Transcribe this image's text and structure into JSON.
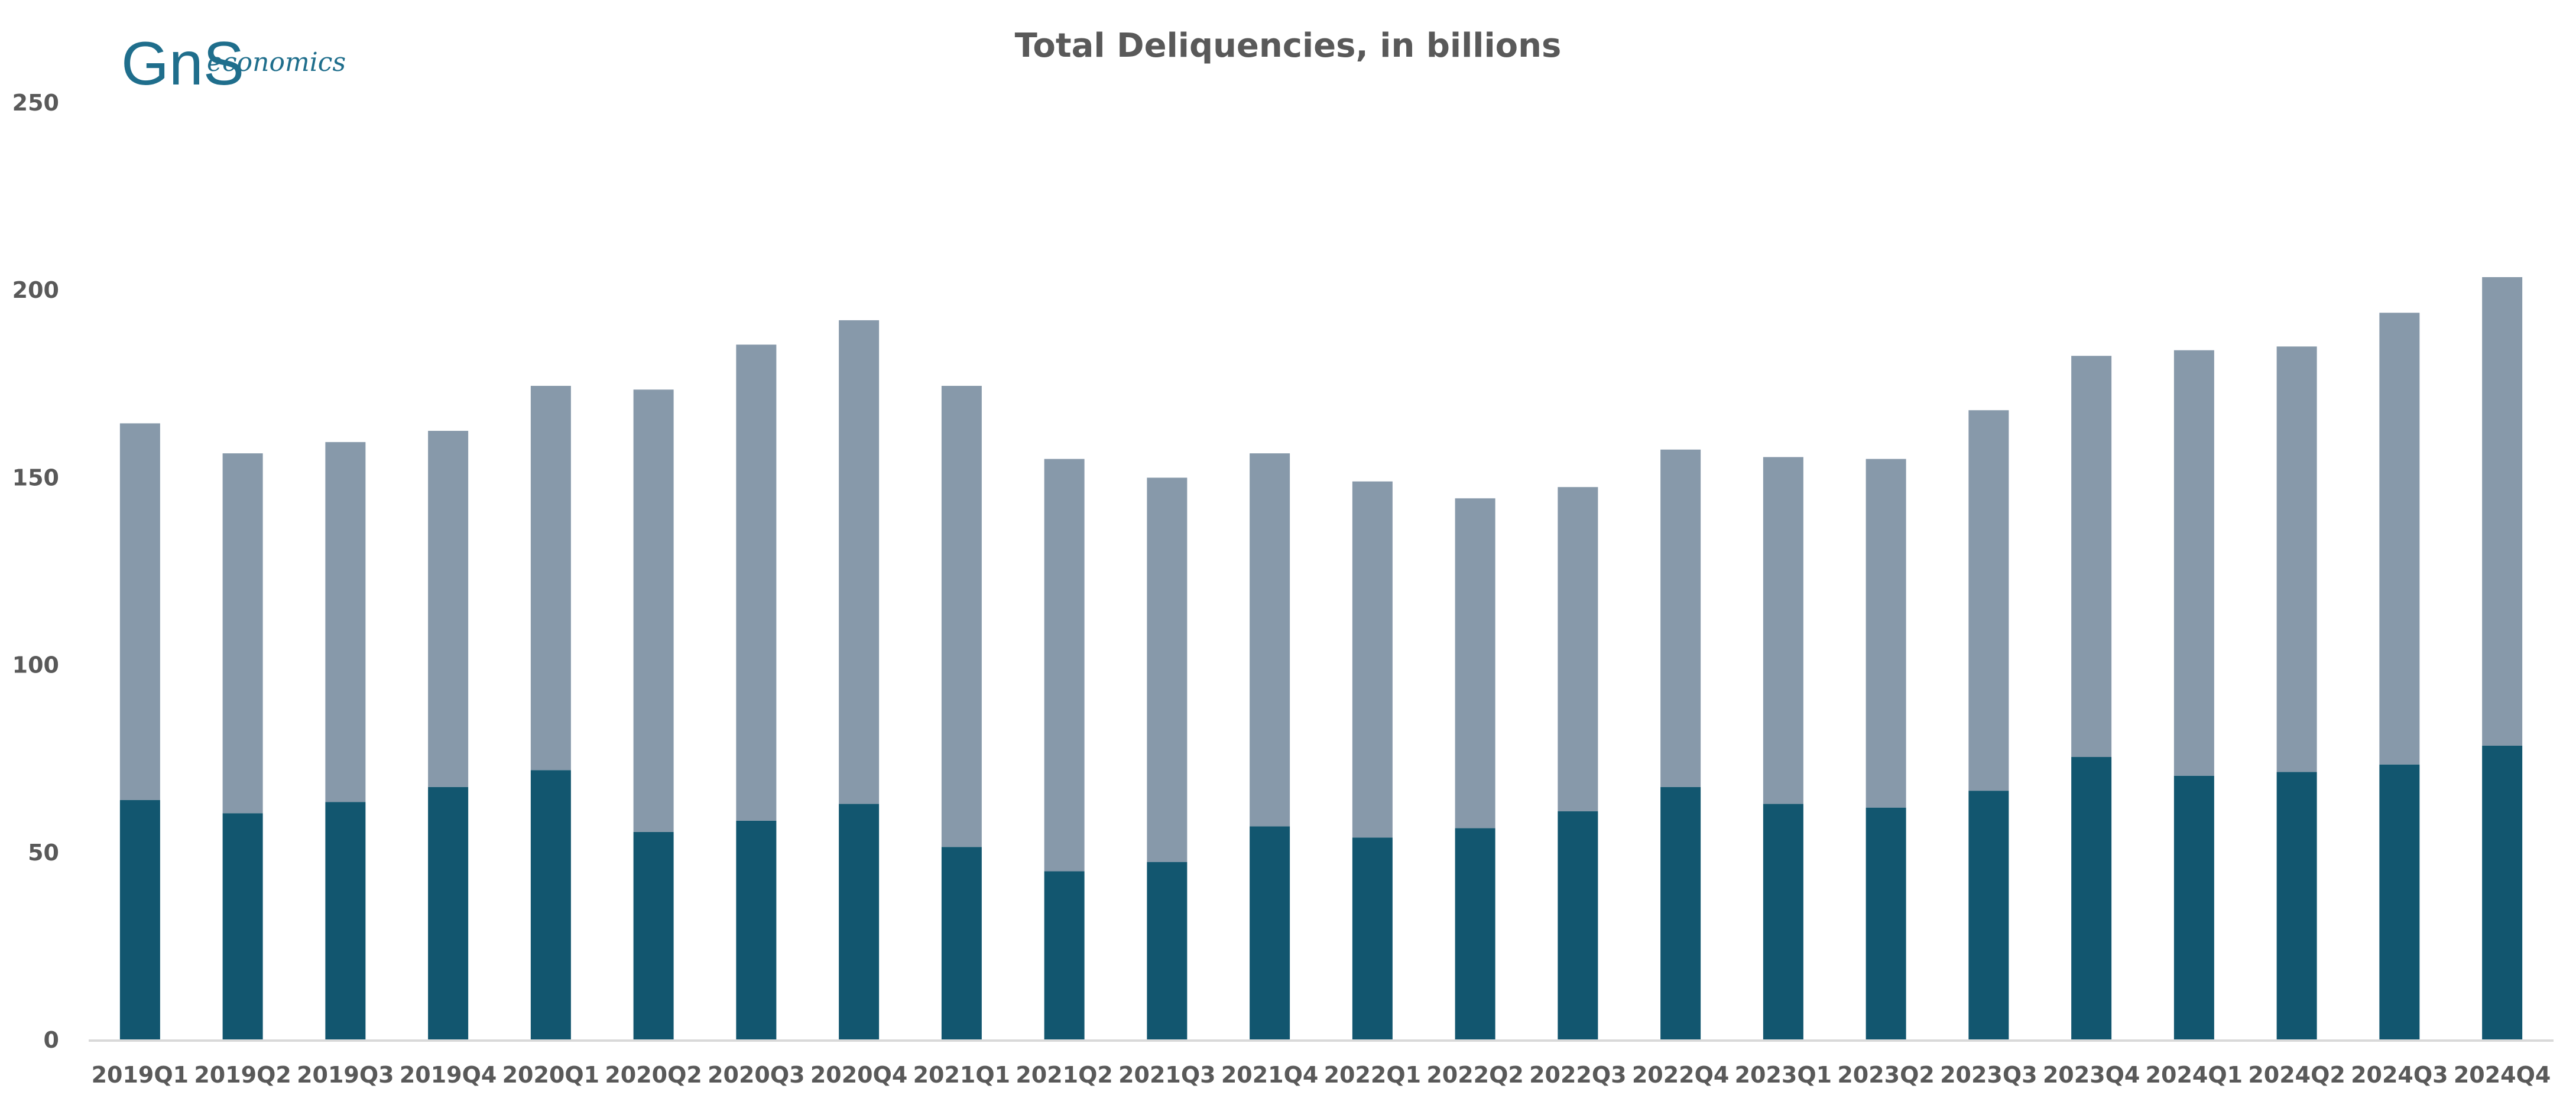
{
  "logo": {
    "text": "GnS economics",
    "mark": "GnS",
    "tagline": "economics",
    "color": "#1f6e8c"
  },
  "chart_data": {
    "type": "bar",
    "stacked": true,
    "title": "Total Deliquencies, in billions",
    "xlabel": "",
    "ylabel": "",
    "ylim": [
      0,
      250
    ],
    "yticks": [
      0,
      50,
      100,
      150,
      200,
      250
    ],
    "grid": false,
    "legend": "none",
    "categories": [
      "2019Q1",
      "2019Q2",
      "2019Q3",
      "2019Q4",
      "2020Q1",
      "2020Q2",
      "2020Q3",
      "2020Q4",
      "2021Q1",
      "2021Q2",
      "2021Q3",
      "2021Q4",
      "2022Q1",
      "2022Q2",
      "2022Q3",
      "2022Q4",
      "2023Q1",
      "2023Q2",
      "2023Q3",
      "2023Q4",
      "2024Q1",
      "2024Q2",
      "2024Q3",
      "2024Q4"
    ],
    "series": [
      {
        "color": "#12566f",
        "values": [
          64,
          60.5,
          63.5,
          67.5,
          72,
          55.5,
          58.5,
          63,
          51.5,
          45,
          47.5,
          57,
          54,
          56.5,
          61,
          67.5,
          63,
          62,
          66.5,
          75.5,
          70.5,
          71.5,
          73.5,
          78.5
        ]
      },
      {
        "color": "#8799aa",
        "values": [
          100.5,
          96,
          96,
          95,
          102.5,
          118,
          127,
          129,
          123,
          110,
          102.5,
          99.5,
          95,
          88,
          86.5,
          90,
          92.5,
          93,
          101.5,
          107,
          113.5,
          113.5,
          120.5,
          125
        ]
      }
    ],
    "axis_color": "#d9d9d9",
    "label_color": "#595959"
  }
}
